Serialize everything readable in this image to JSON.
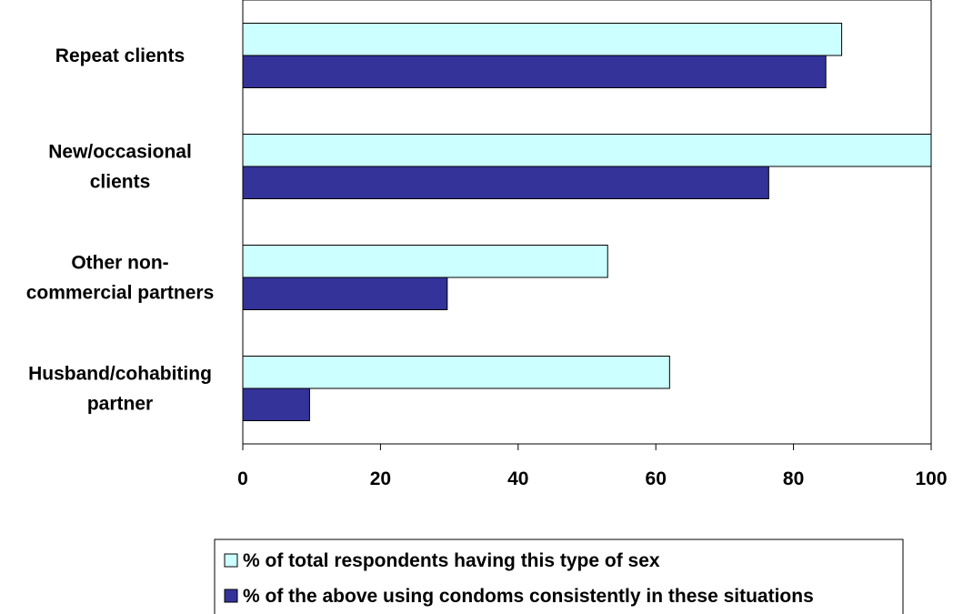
{
  "chart_data": {
    "type": "bar",
    "orientation": "horizontal",
    "categories": [
      [
        "Repeat clients"
      ],
      [
        "New/occasional",
        "clients"
      ],
      [
        "Other non-",
        "commercial partners"
      ],
      [
        "Husband/cohabiting",
        "partner"
      ]
    ],
    "series": [
      {
        "name": "% of total respondents having this type of sex",
        "color": "#ccffff",
        "values": [
          87,
          100,
          53,
          62
        ]
      },
      {
        "name": "% of the above using condoms consistently in these situations",
        "color": "#333399",
        "values": [
          84.7,
          76.4,
          29.7,
          9.7
        ]
      }
    ],
    "xlim": [
      0,
      100
    ],
    "xticks": [
      0,
      20,
      40,
      60,
      80,
      100
    ],
    "grid": false,
    "legend": "bottom"
  }
}
